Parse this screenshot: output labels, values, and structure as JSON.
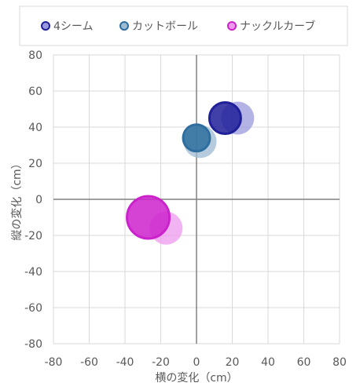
{
  "chart_data": {
    "type": "scatter",
    "xlabel": "横の変化（cm）",
    "ylabel": "縦の変化（cm）",
    "xlim": [
      -80,
      80
    ],
    "ylim": [
      -80,
      80
    ],
    "x_ticks": [
      -80,
      -60,
      -40,
      -20,
      0,
      20,
      40,
      60,
      80
    ],
    "y_ticks": [
      -80,
      -60,
      -40,
      -20,
      0,
      20,
      40,
      60,
      80
    ],
    "grid": true,
    "legend_position": "top",
    "series": [
      {
        "name": "4シーム",
        "color": "#1f1f99",
        "faded_color": "#9999dd",
        "points": [
          {
            "x": 16,
            "y": 45,
            "style": "solid"
          },
          {
            "x": 23,
            "y": 45,
            "style": "faded"
          }
        ]
      },
      {
        "name": "カットボール",
        "color": "#2e6e9e",
        "faded_color": "#9dbbd3",
        "points": [
          {
            "x": 0,
            "y": 34,
            "style": "solid"
          },
          {
            "x": 2,
            "y": 32,
            "style": "faded"
          }
        ]
      },
      {
        "name": "ナックルカーブ",
        "color": "#cc22cc",
        "faded_color": "#ee99ee",
        "points": [
          {
            "x": -27,
            "y": -10,
            "style": "solid"
          },
          {
            "x": -17,
            "y": -16,
            "style": "faded"
          }
        ]
      }
    ]
  }
}
